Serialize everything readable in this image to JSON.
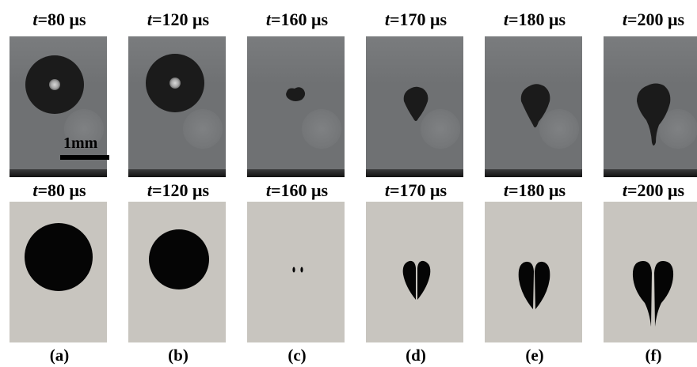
{
  "panels": [
    {
      "id": "a",
      "time_label": "=80 μs",
      "panel_label": "(a)"
    },
    {
      "id": "b",
      "time_label": "=120 μs",
      "panel_label": "(b)"
    },
    {
      "id": "c",
      "time_label": "=160 μs",
      "panel_label": "(c)"
    },
    {
      "id": "d",
      "time_label": "=170 μs",
      "panel_label": "(d)"
    },
    {
      "id": "e",
      "time_label": "=180 μs",
      "panel_label": "(e)"
    },
    {
      "id": "f",
      "time_label": "=200 μs",
      "panel_label": "(f)"
    }
  ],
  "time_var": "t",
  "scale_bar": {
    "label": "1mm"
  },
  "colors": {
    "photo_background": "#6f7173",
    "droplet": "#1b1b1b",
    "sim_background": "#c8c5bf",
    "sim_shape": "#050505"
  }
}
